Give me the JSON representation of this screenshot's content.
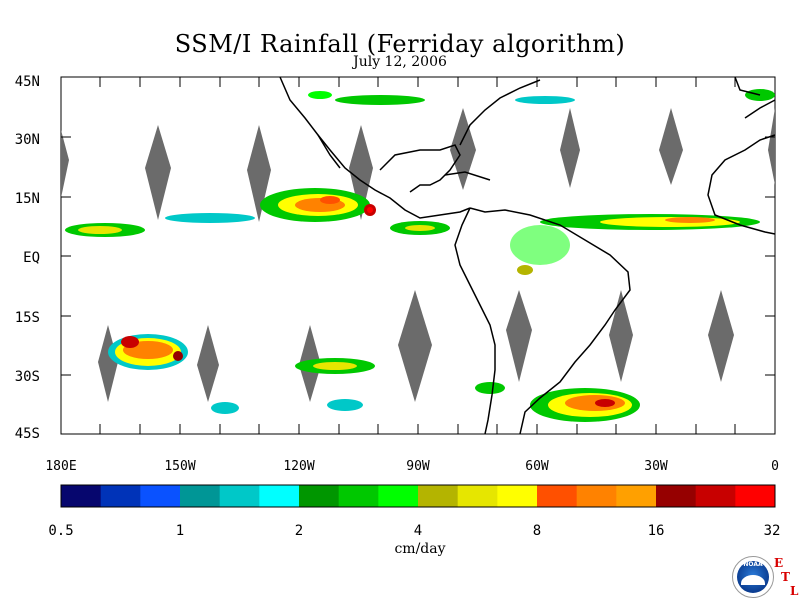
{
  "title": "SSM/I Rainfall (Ferriday algorithm)",
  "subtitle": "July 12, 2006",
  "map": {
    "lat_labels": [
      "45N",
      "30N",
      "15N",
      "EQ",
      "15S",
      "30S",
      "45S"
    ],
    "lon_labels": [
      "180E",
      "150W",
      "120W",
      "90W",
      "60W",
      "30W",
      "0"
    ],
    "colors": {
      "land": "#000000",
      "gap": "#6b6b6b",
      "frame": "#000000"
    }
  },
  "colorbar": {
    "colors": [
      "#06066e",
      "#0033b8",
      "#0a52ff",
      "#009696",
      "#00c8c8",
      "#00ffff",
      "#009600",
      "#00c800",
      "#00ff00",
      "#b4b400",
      "#e6e600",
      "#ffff00",
      "#ff5000",
      "#ff8200",
      "#ffa000",
      "#960000",
      "#c80000",
      "#ff0000"
    ],
    "tick_labels": [
      "0.5",
      "1",
      "2",
      "4",
      "8",
      "16",
      "32"
    ],
    "units": "cm/day"
  },
  "logo": {
    "text": "NOAA",
    "letters": [
      "E",
      "T",
      "L"
    ]
  }
}
